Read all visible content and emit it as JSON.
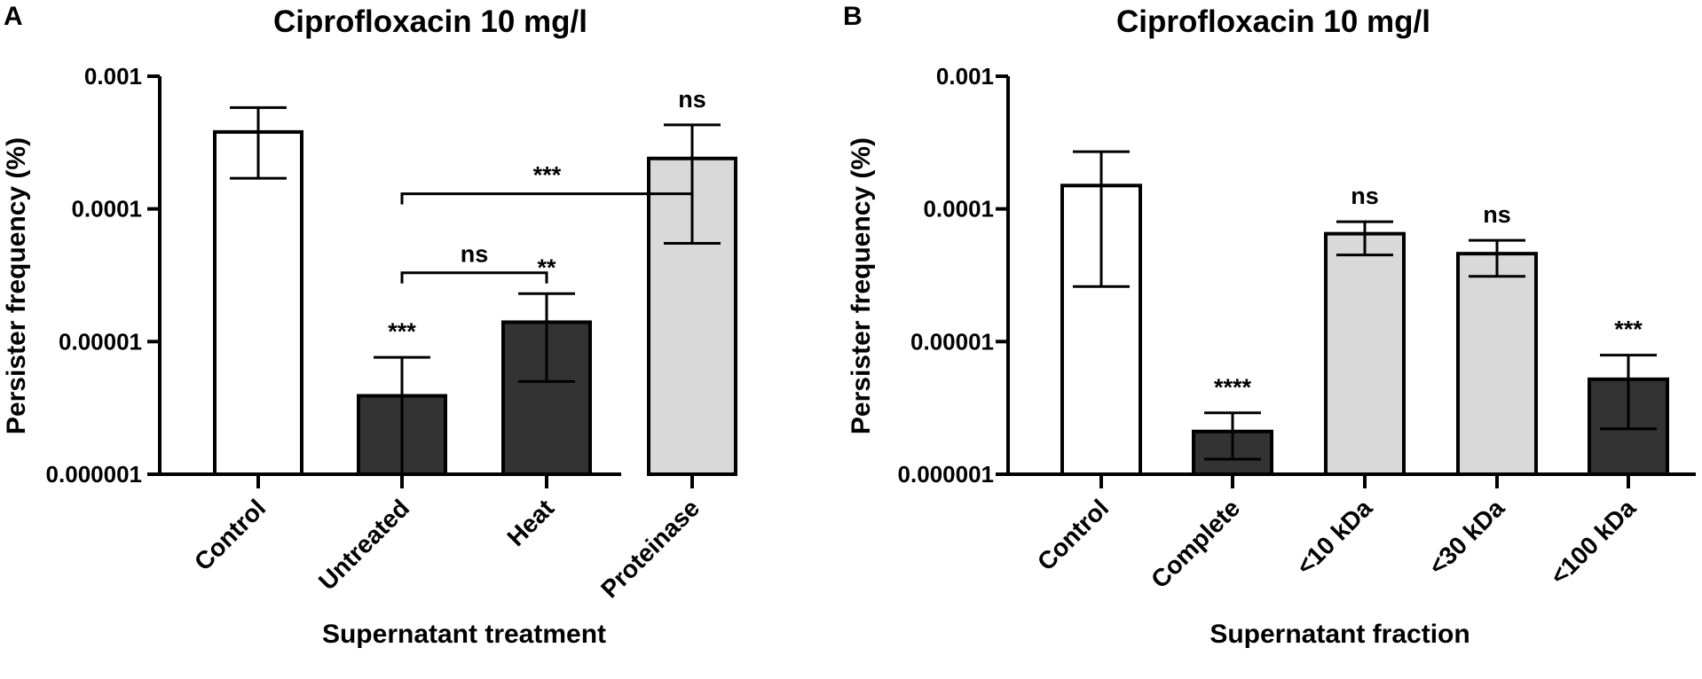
{
  "chart_data": [
    {
      "panel": "A",
      "type": "bar",
      "title": "Ciprofloxacin 10 mg/l",
      "xlabel": "Supernatant treatment",
      "ylabel": "Persister frequency (%)",
      "yscale": "log",
      "ylim": [
        1e-06,
        0.001
      ],
      "yticks": [
        1e-06,
        1e-05,
        0.0001,
        0.001
      ],
      "ytick_labels": [
        "0.000001",
        "0.00001",
        "0.0001",
        "0.001"
      ],
      "categories": [
        "Control",
        "Untreated",
        "Heat",
        "Proteinase"
      ],
      "values": [
        0.00038,
        3.9e-06,
        1.4e-05,
        0.00024
      ],
      "error_low": [
        0.00017,
        1e-06,
        5e-06,
        5.5e-05
      ],
      "error_high": [
        0.00058,
        7.6e-06,
        2.3e-05,
        0.00043
      ],
      "fills": [
        "#ffffff",
        "#333333",
        "#333333",
        "#d9d9d9"
      ],
      "bar_labels": [
        "",
        "***",
        "**",
        "ns"
      ],
      "comparisons": [
        {
          "from": 1,
          "to": 3,
          "value": 0.00013,
          "label": "***"
        },
        {
          "from": 1,
          "to": 2,
          "value": 3.3e-05,
          "label": "ns"
        }
      ]
    },
    {
      "panel": "B",
      "type": "bar",
      "title": "Ciprofloxacin 10 mg/l",
      "xlabel": "Supernatant fraction",
      "ylabel": "Persister frequency (%)",
      "yscale": "log",
      "ylim": [
        1e-06,
        0.001
      ],
      "yticks": [
        1e-06,
        1e-05,
        0.0001,
        0.001
      ],
      "ytick_labels": [
        "0.000001",
        "0.00001",
        "0.0001",
        "0.001"
      ],
      "categories": [
        "Control",
        "Complete",
        "<10 kDa",
        "<30 kDa",
        "<100 kDa"
      ],
      "values": [
        0.00015,
        2.1e-06,
        6.5e-05,
        4.6e-05,
        5.2e-06
      ],
      "error_low": [
        2.6e-05,
        1.3e-06,
        4.5e-05,
        3.1e-05,
        2.2e-06
      ],
      "error_high": [
        0.00027,
        2.9e-06,
        8e-05,
        5.8e-05,
        7.9e-06
      ],
      "fills": [
        "#ffffff",
        "#333333",
        "#d9d9d9",
        "#d9d9d9",
        "#333333"
      ],
      "bar_labels": [
        "",
        "****",
        "ns",
        "ns",
        "***"
      ],
      "comparisons": []
    }
  ]
}
